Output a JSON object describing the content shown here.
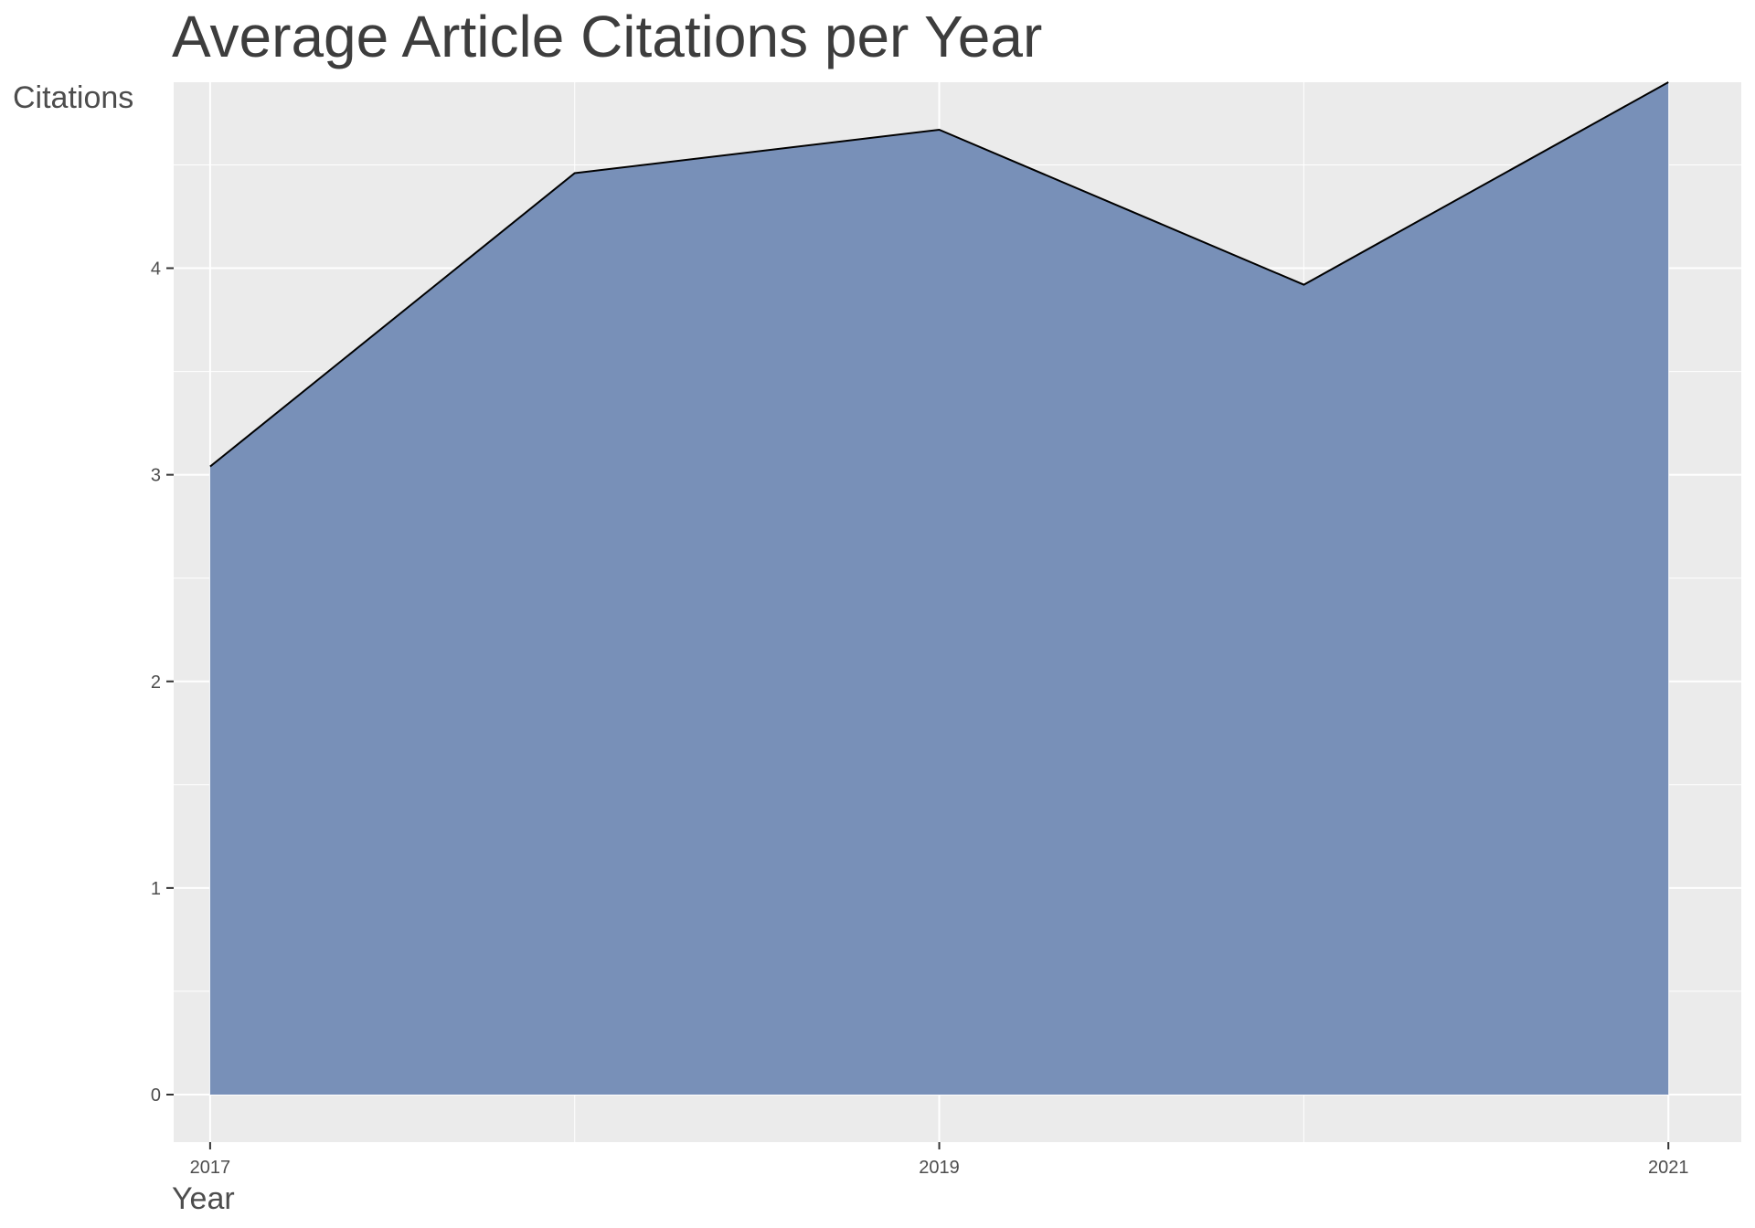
{
  "chart_data": {
    "type": "area",
    "title": "Average Article Citations per Year",
    "xlabel": "Year",
    "ylabel": "Citations",
    "x": [
      2017,
      2018,
      2019,
      2020,
      2021
    ],
    "values": [
      3.04,
      4.46,
      4.67,
      3.92,
      4.9
    ],
    "xlim": [
      2016.9,
      2021.2
    ],
    "ylim": [
      -0.23,
      4.9
    ],
    "x_ticks": [
      2017,
      2019,
      2021
    ],
    "x_tick_labels": [
      "2017",
      "2019",
      "2021"
    ],
    "y_ticks": [
      0,
      1,
      2,
      3,
      4
    ],
    "y_tick_labels": [
      "0",
      "1",
      "2",
      "3",
      "4"
    ],
    "grid": true,
    "legend": "none",
    "fill_color": "#7890b8",
    "line_color": "#000000",
    "panel_background": "#ebebeb",
    "grid_color": "#ffffff"
  }
}
